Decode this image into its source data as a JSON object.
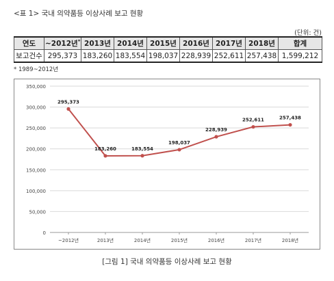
{
  "table_caption": "<표 1> 국내 의약품등 이상사례 보고 현황",
  "unit": "(단위: 건)",
  "table": {
    "header_label": "연도",
    "row_label": "보고건수",
    "columns": [
      "~2012년",
      "2013년",
      "2014년",
      "2015년",
      "2016년",
      "2017년",
      "2018년",
      "합계"
    ],
    "first_column_mark": "*",
    "values": [
      "295,373",
      "183,260",
      "183,554",
      "198,037",
      "228,939",
      "252,611",
      "257,438",
      "1,599,212"
    ]
  },
  "footnote": "* 1989~2012년",
  "figure_caption": "[그림 1] 국내 의약품등 이상사례 보고 현황",
  "colors": {
    "line": "#c0504d",
    "grid": "#d9d9d9",
    "table_header": "#e6e6e6"
  },
  "chart_data": {
    "type": "line",
    "categories": [
      "~2012년",
      "2013년",
      "2014년",
      "2015년",
      "2016년",
      "2017년",
      "2018년"
    ],
    "values": [
      295373,
      183260,
      183554,
      198037,
      228939,
      252611,
      257438
    ],
    "data_labels": [
      "295,373",
      "183,260",
      "183,554",
      "198,037",
      "228,939",
      "252,611",
      "257,438"
    ],
    "y_ticks": [
      "0",
      "50,000",
      "100,000",
      "150,000",
      "200,000",
      "250,000",
      "300,000",
      "350,000"
    ],
    "y_tick_values": [
      0,
      50000,
      100000,
      150000,
      200000,
      250000,
      300000,
      350000
    ],
    "ylim": [
      0,
      350000
    ],
    "grid": true,
    "legend": "none"
  }
}
